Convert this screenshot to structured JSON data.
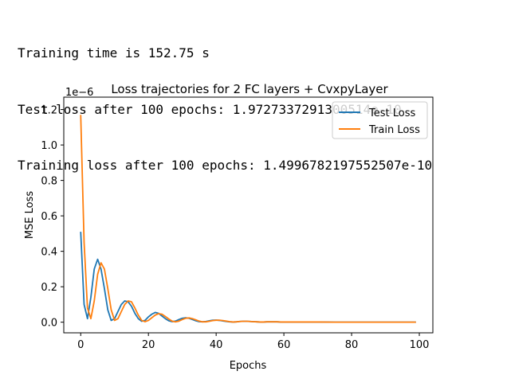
{
  "output": {
    "lines": [
      "Training time is 152.75 s",
      "Test loss after 100 epochs: 1.9727337291300514e-10",
      "Training loss after 100 epochs: 1.4996782197552507e-10"
    ]
  },
  "chart_data": {
    "type": "line",
    "title": "Loss trajectories for 2 FC layers + CvxpyLayer",
    "xlabel": "Epochs",
    "ylabel": "MSE Loss",
    "y_offset_label": "1e−6",
    "xlim": [
      -5,
      104
    ],
    "ylim": [
      -0.06,
      1.27
    ],
    "xticks": [
      0,
      20,
      40,
      60,
      80,
      100
    ],
    "yticks": [
      0.0,
      0.2,
      0.4,
      0.6,
      0.8,
      1.0,
      1.2
    ],
    "ytick_labels": [
      "0.0",
      "0.2",
      "0.4",
      "0.6",
      "0.8",
      "1.0",
      "1.2"
    ],
    "grid": false,
    "legend_position": "upper right",
    "colors": {
      "test": "#1f77b4",
      "train": "#ff7f0e"
    },
    "series": [
      {
        "name": "Test Loss",
        "x": [
          0,
          1,
          2,
          3,
          4,
          5,
          6,
          7,
          8,
          9,
          10,
          11,
          12,
          13,
          14,
          15,
          16,
          17,
          18,
          19,
          20,
          21,
          22,
          23,
          24,
          25,
          26,
          27,
          28,
          29,
          30,
          31,
          32,
          33,
          34,
          35,
          36,
          37,
          38,
          39,
          40,
          41,
          42,
          43,
          44,
          45,
          46,
          47,
          48,
          49,
          50,
          51,
          52,
          53,
          54,
          55,
          56,
          57,
          58,
          59,
          60,
          62,
          65,
          70,
          75,
          80,
          85,
          90,
          95,
          99
        ],
        "y": [
          0.51,
          0.1,
          0.02,
          0.14,
          0.3,
          0.355,
          0.3,
          0.19,
          0.07,
          0.01,
          0.02,
          0.06,
          0.1,
          0.12,
          0.115,
          0.09,
          0.05,
          0.02,
          0.005,
          0.01,
          0.03,
          0.045,
          0.055,
          0.05,
          0.035,
          0.02,
          0.008,
          0.003,
          0.006,
          0.015,
          0.022,
          0.025,
          0.022,
          0.015,
          0.008,
          0.003,
          0.002,
          0.004,
          0.008,
          0.011,
          0.012,
          0.01,
          0.007,
          0.004,
          0.002,
          0.001,
          0.002,
          0.004,
          0.005,
          0.005,
          0.004,
          0.003,
          0.002,
          0.001,
          0.001,
          0.002,
          0.002,
          0.002,
          0.002,
          0.001,
          0.001,
          0.001,
          0.001,
          0.001,
          0.0,
          0.0,
          0.0,
          0.0,
          0.0,
          0.0
        ]
      },
      {
        "name": "Train Loss",
        "x": [
          0,
          1,
          2,
          3,
          4,
          5,
          6,
          7,
          8,
          9,
          10,
          11,
          12,
          13,
          14,
          15,
          16,
          17,
          18,
          19,
          20,
          21,
          22,
          23,
          24,
          25,
          26,
          27,
          28,
          29,
          30,
          31,
          32,
          33,
          34,
          35,
          36,
          37,
          38,
          39,
          40,
          41,
          42,
          43,
          44,
          45,
          46,
          47,
          48,
          49,
          50,
          51,
          52,
          53,
          54,
          55,
          56,
          57,
          58,
          59,
          60,
          62,
          65,
          70,
          75,
          80,
          85,
          90,
          95,
          99
        ],
        "y": [
          1.17,
          0.45,
          0.08,
          0.02,
          0.12,
          0.27,
          0.335,
          0.3,
          0.19,
          0.07,
          0.01,
          0.02,
          0.06,
          0.1,
          0.12,
          0.115,
          0.08,
          0.04,
          0.01,
          0.003,
          0.01,
          0.025,
          0.04,
          0.048,
          0.045,
          0.032,
          0.018,
          0.006,
          0.002,
          0.006,
          0.015,
          0.022,
          0.024,
          0.02,
          0.013,
          0.006,
          0.002,
          0.002,
          0.005,
          0.009,
          0.011,
          0.011,
          0.009,
          0.006,
          0.003,
          0.001,
          0.002,
          0.004,
          0.005,
          0.005,
          0.004,
          0.003,
          0.002,
          0.001,
          0.001,
          0.002,
          0.002,
          0.002,
          0.002,
          0.001,
          0.001,
          0.001,
          0.001,
          0.001,
          0.0,
          0.0,
          0.0,
          0.0,
          0.0,
          0.0
        ]
      }
    ]
  }
}
